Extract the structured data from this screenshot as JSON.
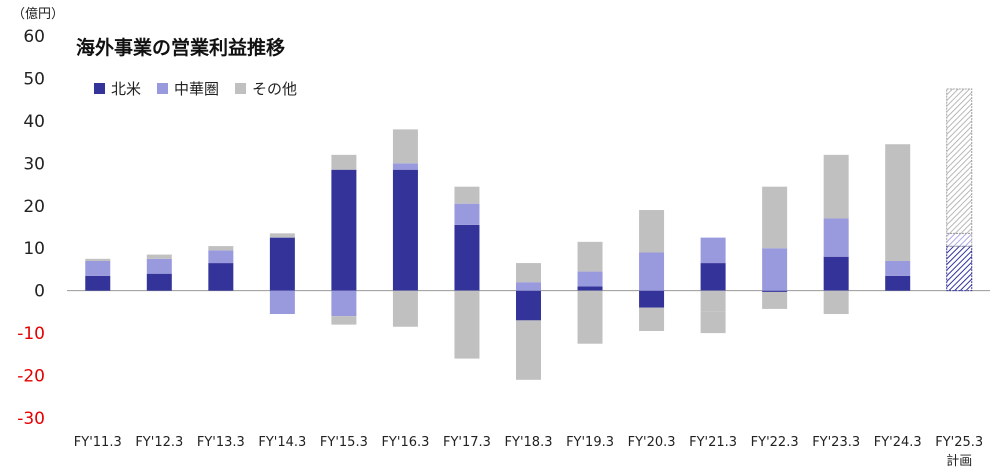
{
  "chart_data": {
    "type": "bar",
    "title": "海外事業の営業利益推移",
    "unit": "（億円）",
    "categories": [
      "FY'11.3",
      "FY'12.3",
      "FY'13.3",
      "FY'14.3",
      "FY'15.3",
      "FY'16.3",
      "FY'17.3",
      "FY'18.3",
      "FY'19.3",
      "FY'20.3",
      "FY'21.3",
      "FY'22.3",
      "FY'23.3",
      "FY'24.3",
      "FY'25.3"
    ],
    "category_sublabels": [
      "",
      "",
      "",
      "",
      "",
      "",
      "",
      "",
      "",
      "",
      "",
      "",
      "",
      "",
      "計画"
    ],
    "series": [
      {
        "name": "北米",
        "color": "#333399",
        "values": [
          3.5,
          4,
          6.5,
          12.5,
          28.5,
          28.5,
          15.5,
          -7,
          1,
          -4,
          6.5,
          -0.3,
          8,
          3.5,
          10.5
        ]
      },
      {
        "name": "中華圏",
        "color": "#9999dd",
        "values": [
          3.5,
          3.5,
          3,
          -5.5,
          -6,
          1.5,
          5,
          2,
          3.5,
          9,
          6,
          10,
          9,
          3.5,
          3
        ]
      },
      {
        "name": "その他",
        "color": "#c0c0c0",
        "values": [
          0.5,
          1,
          1,
          1,
          3.5,
          8,
          4,
          4.5,
          7,
          10,
          -5,
          14.5,
          15,
          27.5,
          34
        ]
      }
    ],
    "negatives_above": [
      0,
      0,
      0,
      0,
      2,
      8.5,
      16,
      14,
      12.5,
      5.5,
      5,
      4,
      5.5,
      0,
      0
    ],
    "highlight_last_category_as_plan": true,
    "ylim": [
      -30,
      60
    ],
    "yticks": [
      -30,
      -20,
      -10,
      0,
      10,
      20,
      30,
      40,
      50,
      60
    ],
    "grid": false,
    "legend_position": "top-left"
  }
}
